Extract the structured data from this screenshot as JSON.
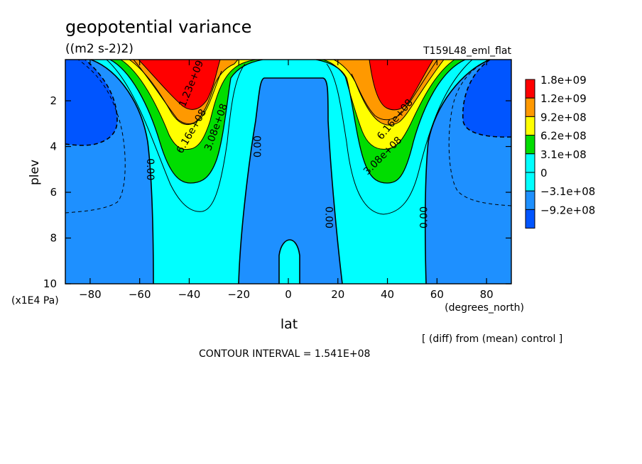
{
  "chart_data": {
    "type": "heatmap",
    "title": "geopotential variance",
    "units": "((m2 s-2)2)",
    "run_name": "T159L48_eml_flat",
    "xlabel": "lat",
    "xunits": "(degrees_north)",
    "ylabel": "plev",
    "yunits": "(x1E4 Pa)",
    "xlim": [
      -90,
      90
    ],
    "ylim": [
      10,
      0.2
    ],
    "x_ticks": [
      -80,
      -60,
      -40,
      -20,
      0,
      20,
      40,
      60,
      80
    ],
    "y_ticks": [
      2,
      4,
      6,
      8,
      10
    ],
    "x_tick_labels": [
      "−80",
      "−60",
      "−40",
      "−20",
      "0",
      "20",
      "40",
      "60",
      "80"
    ],
    "y_tick_labels": [
      "2",
      "4",
      "6",
      "8",
      "10"
    ],
    "note": "[ (diff) from (mean) control ]",
    "contour_interval_text": "CONTOUR INTERVAL = 1.541E+08",
    "levels": [
      {
        "label": "1.8e+09",
        "color": "#ff0000"
      },
      {
        "label": "1.2e+09",
        "color": "#ff9900"
      },
      {
        "label": "9.2e+08",
        "color": "#ffff00"
      },
      {
        "label": "6.2e+08",
        "color": "#00dd00"
      },
      {
        "label": "3.1e+08",
        "color": "#00ffff"
      },
      {
        "label": "0",
        "color": "#00ffff"
      },
      {
        "label": "−3.1e+08",
        "color": "#1e90ff"
      },
      {
        "label": "−9.2e+08",
        "color": "#0055ff"
      }
    ],
    "contour_labels": [
      {
        "text": "1.23e+09",
        "lat": -38,
        "plev": 1.3,
        "angle": -68
      },
      {
        "text": "6.16e+08",
        "lat": -38,
        "plev": 3.4,
        "angle": -60
      },
      {
        "text": "3.08e+08",
        "lat": -28,
        "plev": 3.2,
        "angle": -70
      },
      {
        "text": "0.00",
        "lat": -57,
        "plev": 5.0,
        "angle": 90
      },
      {
        "text": "0.00",
        "lat": -11,
        "plev": 4.0,
        "angle": -90
      },
      {
        "text": "0.00",
        "lat": 15,
        "plev": 7.1,
        "angle": 90
      },
      {
        "text": "0.00",
        "lat": 56,
        "plev": 7.1,
        "angle": -90
      },
      {
        "text": "6.16e+08",
        "lat": 44,
        "plev": 2.9,
        "angle": -50
      },
      {
        "text": "3.08e+08",
        "lat": 39,
        "plev": 4.5,
        "angle": -45
      }
    ]
  }
}
